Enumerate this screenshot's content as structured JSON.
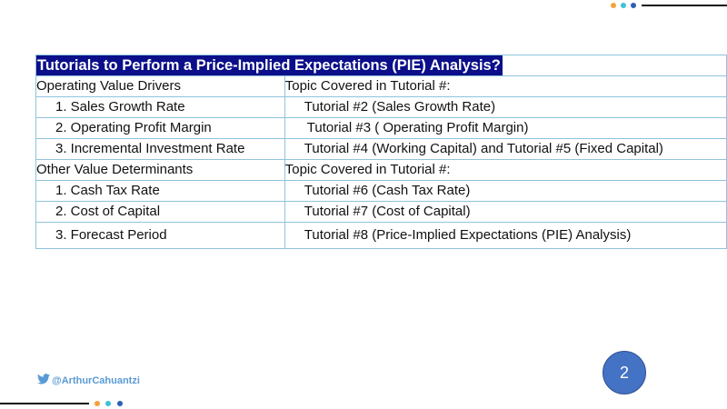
{
  "title": "Tutorials to Perform a Price-Implied Expectations (PIE) Analysis?",
  "sections": [
    {
      "heading": "Operating Value Drivers",
      "column_heading": "Topic Covered in Tutorial #:",
      "rows": [
        {
          "item": "1. Sales Growth Rate",
          "tutorial": "Tutorial #2 (Sales Growth Rate)"
        },
        {
          "item": "2. Operating Profit Margin",
          "tutorial": "Tutorial #3 ( Operating Profit Margin)"
        },
        {
          "item": "3. Incremental Investment Rate",
          "tutorial": "Tutorial #4 (Working Capital) and Tutorial #5 (Fixed Capital)"
        }
      ]
    },
    {
      "heading": "Other Value Determinants",
      "column_heading": "Topic Covered in Tutorial #:",
      "rows": [
        {
          "item": "1. Cash Tax Rate",
          "tutorial": "Tutorial #6 (Cash Tax Rate)"
        },
        {
          "item": "2. Cost of Capital",
          "tutorial": "Tutorial #7 (Cost of Capital)"
        },
        {
          "item": "3. Forecast Period",
          "tutorial": "Tutorial #8 (Price-Implied Expectations (PIE) Analysis)"
        }
      ]
    }
  ],
  "footer": {
    "handle": "@ArthurCahuantzi",
    "handle_icon": "twitter-bird-icon",
    "page_number": "2"
  },
  "colors": {
    "title_bg": "#0b0f8a",
    "table_border": "#8fc3dc",
    "handle_text": "#5a9bd5",
    "page_circle": "#4472c4",
    "deco_orange": "#f4a23c",
    "deco_cyan": "#3fc1d8",
    "deco_blue": "#2f5fb5"
  }
}
